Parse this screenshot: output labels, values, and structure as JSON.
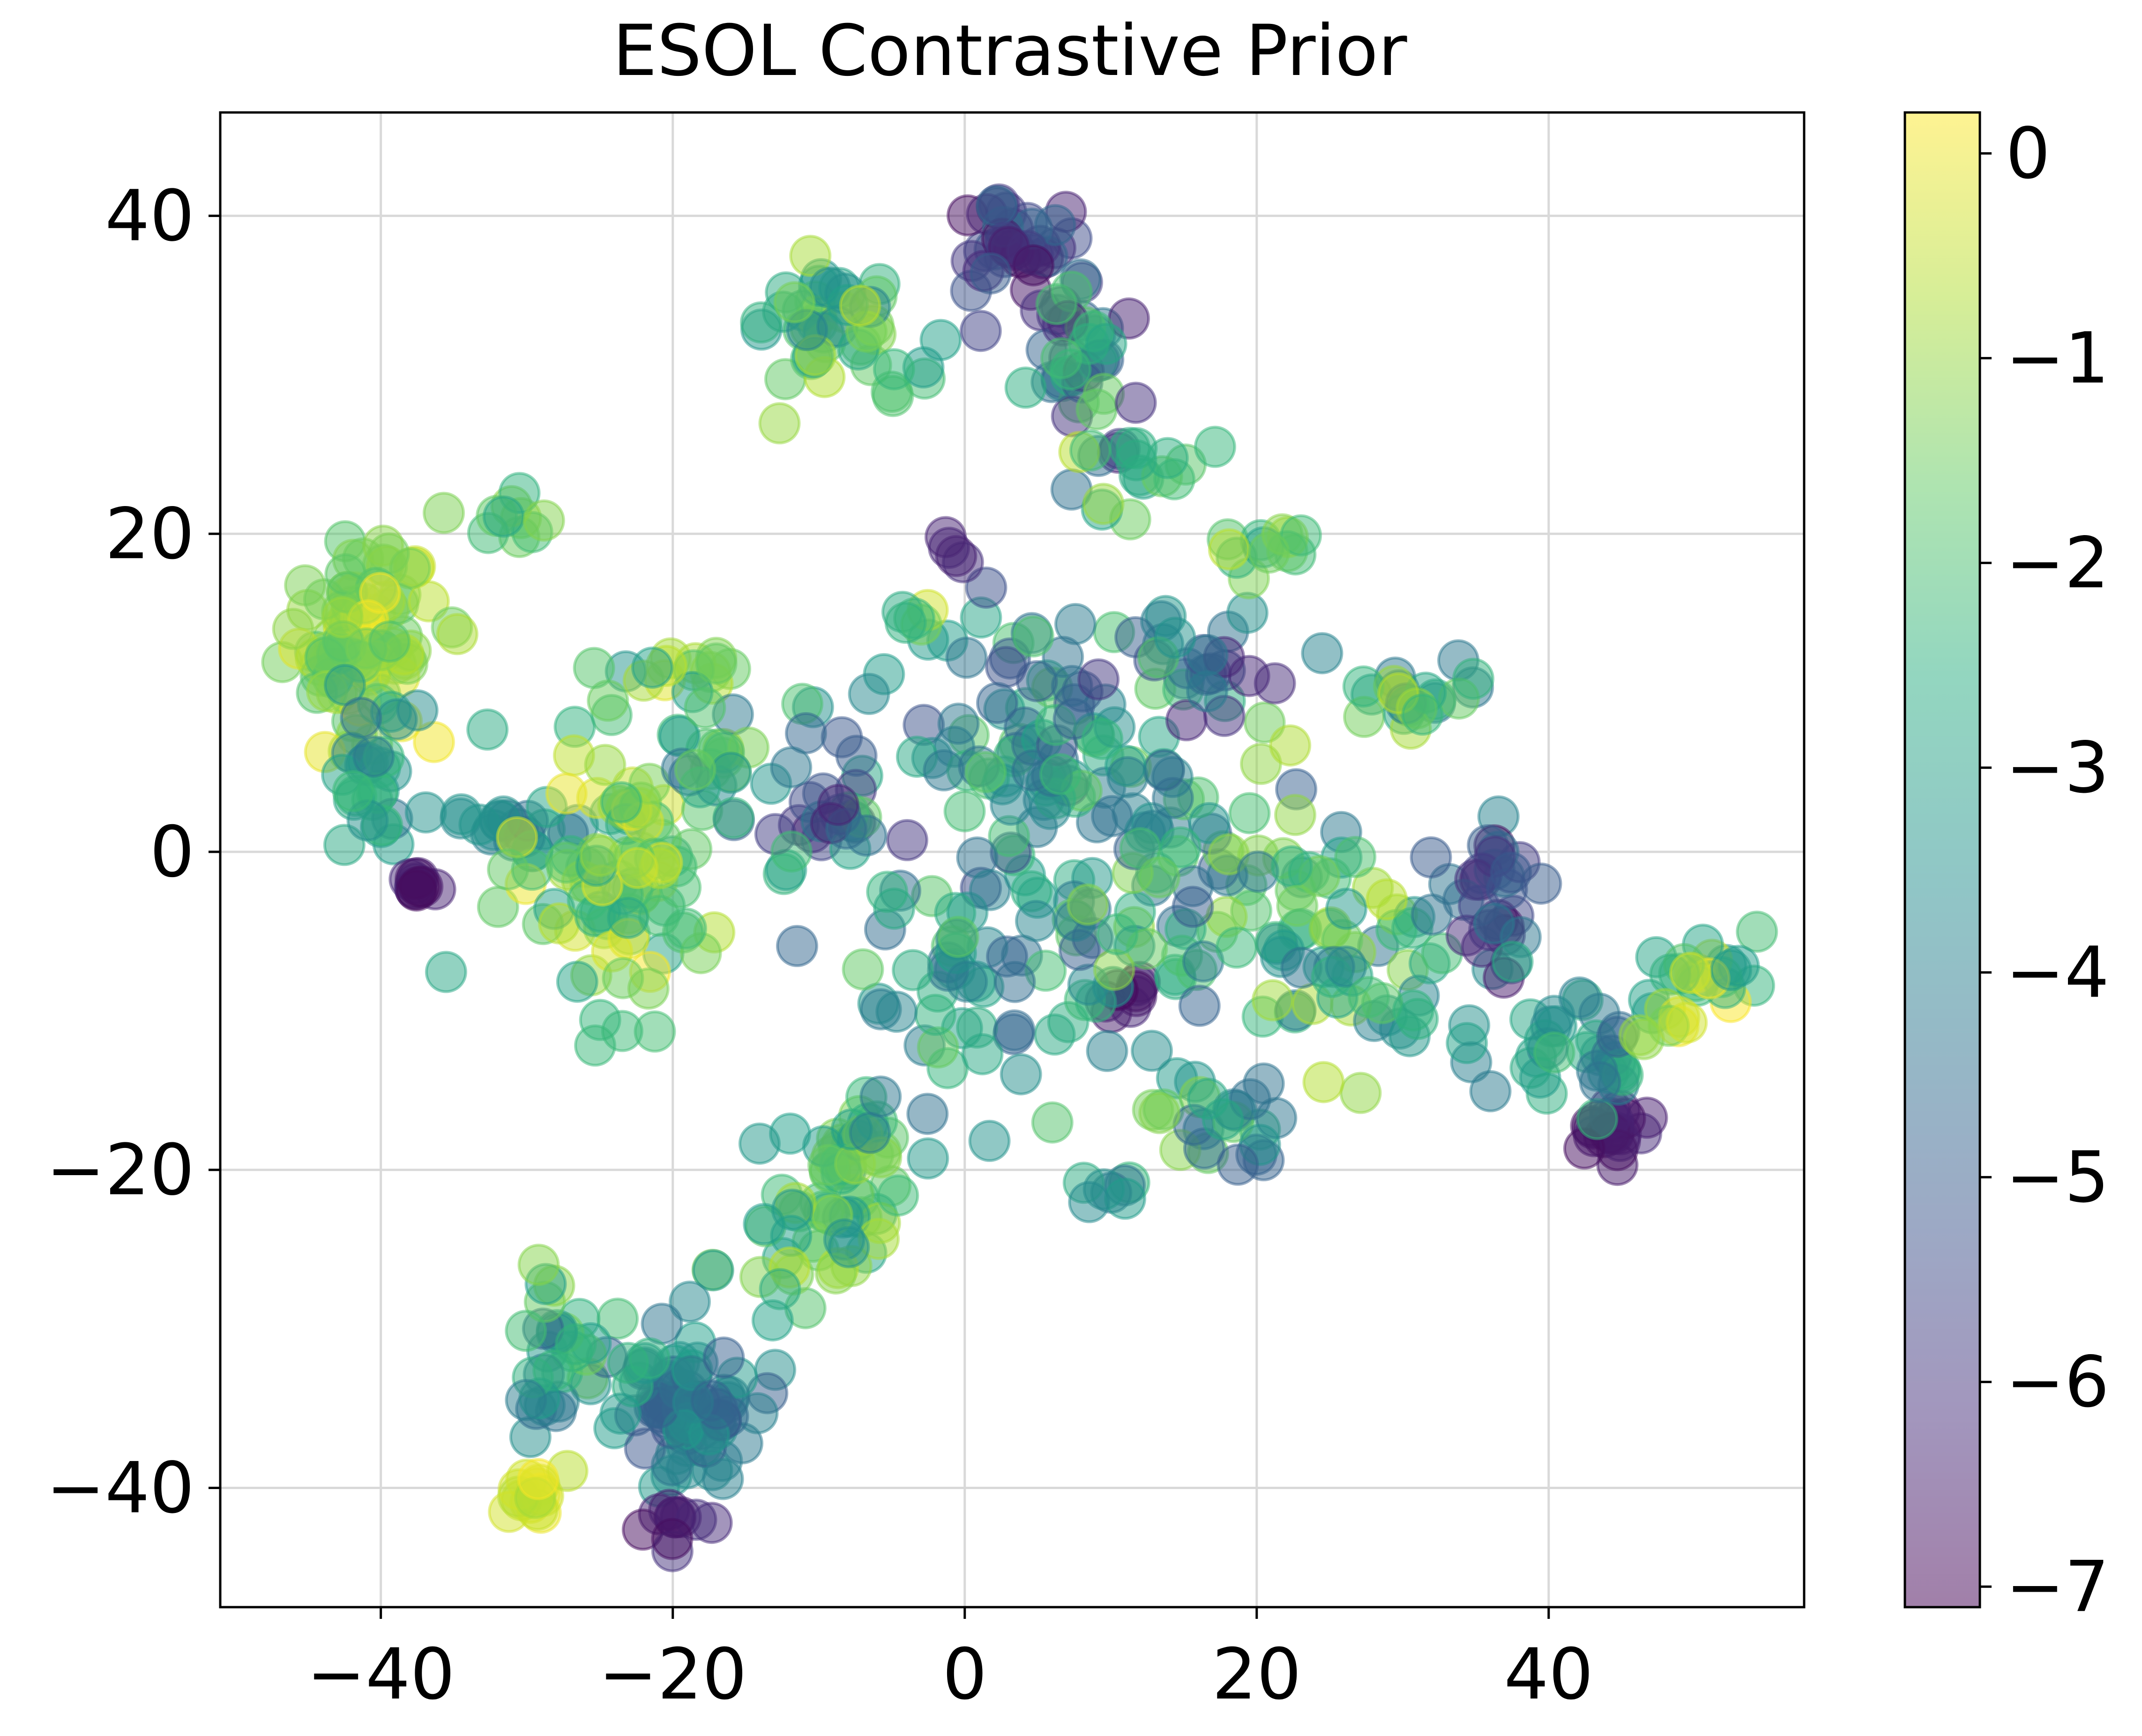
{
  "chart_data": {
    "type": "scatter",
    "title": "ESOL Contrastive Prior",
    "xlabel": "",
    "ylabel": "",
    "xlim": [
      -51,
      57.5
    ],
    "ylim": [
      -47.5,
      46.5
    ],
    "x_ticks": [
      -40,
      -20,
      0,
      20,
      40
    ],
    "y_ticks": [
      -40,
      -20,
      0,
      20,
      40
    ],
    "x_tick_labels": [
      "−40",
      "−20",
      "0",
      "20",
      "40"
    ],
    "y_tick_labels": [
      "−40",
      "−20",
      "0",
      "20",
      "40"
    ],
    "grid": true,
    "colormap": "viridis",
    "marker_alpha": 0.5,
    "colorbar": {
      "min": -7.1,
      "max": 0.2,
      "ticks": [
        0,
        -1,
        -2,
        -3,
        -4,
        -5,
        -6,
        -7
      ],
      "tick_labels": [
        "0",
        "−1",
        "−2",
        "−3",
        "−4",
        "−5",
        "−6",
        "−7"
      ]
    },
    "clusters": [
      {
        "center": [
          -41.5,
          13.5
        ],
        "spread": [
          3.0,
          3.5
        ],
        "count": 90,
        "c_range": [
          -2.0,
          0.2
        ]
      },
      {
        "center": [
          -40.5,
          4.0
        ],
        "spread": [
          1.5,
          3.0
        ],
        "count": 25,
        "c_range": [
          -4.5,
          -2.0
        ]
      },
      {
        "center": [
          -37.5,
          -1.8
        ],
        "spread": [
          0.5,
          0.6
        ],
        "count": 10,
        "c_range": [
          -7.0,
          -6.2
        ]
      },
      {
        "center": [
          -32.0,
          21.0
        ],
        "spread": [
          2.5,
          1.0
        ],
        "count": 10,
        "c_range": [
          -3.0,
          -0.5
        ]
      },
      {
        "center": [
          -31.0,
          1.5
        ],
        "spread": [
          2.0,
          1.0
        ],
        "count": 20,
        "c_range": [
          -4.5,
          -2.5
        ]
      },
      {
        "center": [
          -24.0,
          -1.0
        ],
        "spread": [
          4.0,
          5.0
        ],
        "count": 90,
        "c_range": [
          -3.0,
          0.2
        ]
      },
      {
        "center": [
          -22.0,
          11.0
        ],
        "spread": [
          3.0,
          1.5
        ],
        "count": 15,
        "c_range": [
          -3.5,
          0.0
        ]
      },
      {
        "center": [
          -17.0,
          5.0
        ],
        "spread": [
          2.5,
          2.5
        ],
        "count": 20,
        "c_range": [
          -5.0,
          -0.5
        ]
      },
      {
        "center": [
          -10.0,
          33.0
        ],
        "spread": [
          3.0,
          2.5
        ],
        "count": 40,
        "c_range": [
          -4.0,
          -0.5
        ]
      },
      {
        "center": [
          -10.0,
          3.0
        ],
        "spread": [
          3.0,
          3.5
        ],
        "count": 30,
        "c_range": [
          -6.5,
          -1.5
        ]
      },
      {
        "center": [
          -8.0,
          -20.5
        ],
        "spread": [
          2.5,
          2.5
        ],
        "count": 45,
        "c_range": [
          -3.5,
          -0.5
        ]
      },
      {
        "center": [
          -12.0,
          -25.0
        ],
        "spread": [
          3.0,
          2.5
        ],
        "count": 20,
        "c_range": [
          -3.5,
          -0.5
        ]
      },
      {
        "center": [
          -19.5,
          -35.0
        ],
        "spread": [
          3.0,
          2.5
        ],
        "count": 75,
        "c_range": [
          -5.5,
          -3.0
        ]
      },
      {
        "center": [
          -25.0,
          -33.0
        ],
        "spread": [
          3.0,
          2.5
        ],
        "count": 20,
        "c_range": [
          -5.0,
          -1.0
        ]
      },
      {
        "center": [
          -29.0,
          -30.0
        ],
        "spread": [
          1.0,
          4.0
        ],
        "count": 15,
        "c_range": [
          -5.0,
          -1.0
        ]
      },
      {
        "center": [
          -29.5,
          -40.5
        ],
        "spread": [
          1.5,
          1.0
        ],
        "count": 15,
        "c_range": [
          -1.0,
          0.2
        ]
      },
      {
        "center": [
          -20.0,
          -42.0
        ],
        "spread": [
          1.5,
          0.8
        ],
        "count": 10,
        "c_range": [
          -7.0,
          -6.0
        ]
      },
      {
        "center": [
          3.5,
          38.5
        ],
        "spread": [
          2.5,
          2.0
        ],
        "count": 40,
        "c_range": [
          -7.0,
          -4.5
        ]
      },
      {
        "center": [
          8.0,
          30.0
        ],
        "spread": [
          2.5,
          3.0
        ],
        "count": 35,
        "c_range": [
          -6.5,
          -1.5
        ]
      },
      {
        "center": [
          12.5,
          24.0
        ],
        "spread": [
          3.0,
          2.0
        ],
        "count": 15,
        "c_range": [
          -3.0,
          -0.5
        ]
      },
      {
        "center": [
          4.0,
          5.0
        ],
        "spread": [
          5.0,
          6.0
        ],
        "count": 80,
        "c_range": [
          -5.5,
          -1.5
        ]
      },
      {
        "center": [
          0.0,
          -8.0
        ],
        "spread": [
          5.0,
          6.0
        ],
        "count": 45,
        "c_range": [
          -5.0,
          -1.5
        ]
      },
      {
        "center": [
          11.0,
          -9.0
        ],
        "spread": [
          1.0,
          0.8
        ],
        "count": 8,
        "c_range": [
          -7.0,
          -6.2
        ]
      },
      {
        "center": [
          13.5,
          -3.0
        ],
        "spread": [
          5.0,
          8.0
        ],
        "count": 80,
        "c_range": [
          -5.0,
          -1.0
        ]
      },
      {
        "center": [
          16.0,
          12.0
        ],
        "spread": [
          4.0,
          2.0
        ],
        "count": 25,
        "c_range": [
          -6.5,
          -1.5
        ]
      },
      {
        "center": [
          21.0,
          19.0
        ],
        "spread": [
          2.0,
          1.0
        ],
        "count": 12,
        "c_range": [
          -3.0,
          -0.5
        ]
      },
      {
        "center": [
          -1.0,
          18.5
        ],
        "spread": [
          0.6,
          0.8
        ],
        "count": 4,
        "c_range": [
          -6.8,
          -6.0
        ]
      },
      {
        "center": [
          24.0,
          -5.0
        ],
        "spread": [
          3.5,
          5.0
        ],
        "count": 40,
        "c_range": [
          -4.5,
          -0.5
        ]
      },
      {
        "center": [
          31.0,
          9.5
        ],
        "spread": [
          3.0,
          1.5
        ],
        "count": 20,
        "c_range": [
          -4.5,
          0.2
        ]
      },
      {
        "center": [
          30.0,
          -7.0
        ],
        "spread": [
          3.5,
          3.5
        ],
        "count": 20,
        "c_range": [
          -4.0,
          -0.5
        ]
      },
      {
        "center": [
          37.0,
          -3.0
        ],
        "spread": [
          2.5,
          3.5
        ],
        "count": 30,
        "c_range": [
          -7.0,
          -3.5
        ]
      },
      {
        "center": [
          40.0,
          -11.0
        ],
        "spread": [
          2.5,
          2.0
        ],
        "count": 20,
        "c_range": [
          -4.5,
          -2.5
        ]
      },
      {
        "center": [
          44.5,
          -17.5
        ],
        "spread": [
          1.2,
          1.0
        ],
        "count": 20,
        "c_range": [
          -7.0,
          -6.2
        ]
      },
      {
        "center": [
          44.0,
          -13.0
        ],
        "spread": [
          2.0,
          2.0
        ],
        "count": 15,
        "c_range": [
          -5.0,
          -2.0
        ]
      },
      {
        "center": [
          51.0,
          -7.5
        ],
        "spread": [
          2.0,
          1.5
        ],
        "count": 20,
        "c_range": [
          -3.5,
          0.2
        ]
      },
      {
        "center": [
          48.0,
          -10.5
        ],
        "spread": [
          1.5,
          1.0
        ],
        "count": 8,
        "c_range": [
          -1.5,
          0.2
        ]
      },
      {
        "center": [
          9.5,
          -21.5
        ],
        "spread": [
          1.2,
          0.5
        ],
        "count": 6,
        "c_range": [
          -4.5,
          -2.5
        ]
      },
      {
        "center": [
          16.5,
          -17.5
        ],
        "spread": [
          3.0,
          1.5
        ],
        "count": 20,
        "c_range": [
          -5.0,
          -1.0
        ]
      },
      {
        "center": [
          -4.0,
          30.0
        ],
        "spread": [
          1.0,
          1.0
        ],
        "count": 5,
        "c_range": [
          -4.0,
          -1.5
        ]
      },
      {
        "center": [
          -3.5,
          14.5
        ],
        "spread": [
          1.0,
          0.8
        ],
        "count": 5,
        "c_range": [
          -3.0,
          0.0
        ]
      }
    ]
  }
}
